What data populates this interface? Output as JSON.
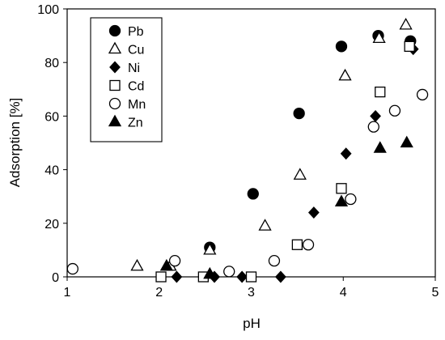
{
  "chart_data": {
    "type": "scatter",
    "xlabel": "pH",
    "ylabel": "Adsorption [%]",
    "xlim": [
      1,
      5
    ],
    "ylim": [
      0,
      100
    ],
    "x_ticks": [
      "1",
      "2",
      "3",
      "4",
      "5"
    ],
    "y_ticks": [
      "0",
      "20",
      "40",
      "60",
      "80",
      "100"
    ],
    "grid": false,
    "legend_position": "top-left",
    "series": [
      {
        "name": "Pb",
        "marker": "filled-circle",
        "color": "#000000",
        "points": [
          [
            2.55,
            11
          ],
          [
            3.02,
            31
          ],
          [
            3.52,
            61
          ],
          [
            3.98,
            86
          ],
          [
            4.38,
            90
          ],
          [
            4.73,
            88
          ]
        ]
      },
      {
        "name": "Cu",
        "marker": "open-triangle",
        "color": "#000000",
        "points": [
          [
            1.76,
            4
          ],
          [
            2.12,
            4
          ],
          [
            2.55,
            10
          ],
          [
            3.15,
            19
          ],
          [
            3.53,
            38
          ],
          [
            4.02,
            75
          ],
          [
            4.39,
            89
          ],
          [
            4.68,
            94
          ]
        ]
      },
      {
        "name": "Ni",
        "marker": "filled-diamond",
        "color": "#000000",
        "points": [
          [
            2.19,
            0
          ],
          [
            2.6,
            0
          ],
          [
            2.9,
            0
          ],
          [
            3.32,
            0
          ],
          [
            3.68,
            24
          ],
          [
            4.03,
            46
          ],
          [
            4.35,
            60
          ],
          [
            4.76,
            85
          ]
        ]
      },
      {
        "name": "Cd",
        "marker": "open-square",
        "color": "#000000",
        "points": [
          [
            2.02,
            0
          ],
          [
            2.48,
            0
          ],
          [
            3.0,
            0
          ],
          [
            3.5,
            12
          ],
          [
            3.98,
            33
          ],
          [
            4.4,
            69
          ],
          [
            4.72,
            86
          ]
        ]
      },
      {
        "name": "Mn",
        "marker": "open-circle",
        "color": "#000000",
        "points": [
          [
            1.06,
            3
          ],
          [
            2.17,
            6
          ],
          [
            2.76,
            2
          ],
          [
            3.25,
            6
          ],
          [
            3.62,
            12
          ],
          [
            4.08,
            29
          ],
          [
            4.33,
            56
          ],
          [
            4.56,
            62
          ],
          [
            4.86,
            68
          ]
        ]
      },
      {
        "name": "Zn",
        "marker": "filled-triangle",
        "color": "#000000",
        "points": [
          [
            2.08,
            4
          ],
          [
            2.55,
            1
          ],
          [
            3.98,
            28
          ],
          [
            4.4,
            48
          ],
          [
            4.69,
            50
          ]
        ]
      }
    ]
  }
}
